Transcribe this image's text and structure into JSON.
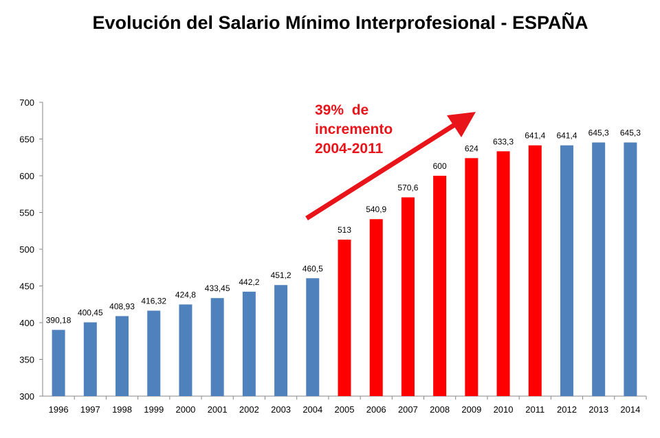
{
  "chart_data": {
    "type": "bar",
    "title": "Evolución del Salario Mínimo Interprofesional - ESPAÑA",
    "xlabel": "",
    "ylabel": "",
    "categories": [
      "1996",
      "1997",
      "1998",
      "1999",
      "2000",
      "2001",
      "2002",
      "2003",
      "2004",
      "2005",
      "2006",
      "2007",
      "2008",
      "2009",
      "2010",
      "2011",
      "2012",
      "2013",
      "2014"
    ],
    "values": [
      390.18,
      400.45,
      408.93,
      416.32,
      424.8,
      433.45,
      442.2,
      451.2,
      460.5,
      513,
      540.9,
      570.6,
      600,
      624,
      633.3,
      641.4,
      641.4,
      645.3,
      645.3
    ],
    "data_labels": [
      "390,18",
      "400,45",
      "408,93",
      "416,32",
      "424,8",
      "433,45",
      "442,2",
      "451,2",
      "460,5",
      "513",
      "540,9",
      "570,6",
      "600",
      "624",
      "633,3",
      "641,4",
      "641,4",
      "645,3",
      "645,3"
    ],
    "highlighted_categories": [
      "2005",
      "2006",
      "2007",
      "2008",
      "2009",
      "2010",
      "2011"
    ],
    "ylim": [
      300,
      700
    ],
    "yticks": [
      300,
      350,
      400,
      450,
      500,
      550,
      600,
      650,
      700
    ],
    "grid": false,
    "legend": "none",
    "colors": {
      "default_bar": "#4f81bd",
      "highlight_bar": "#ff0000",
      "annotation": "#e8141a"
    },
    "annotation": {
      "lines": [
        "39%  de",
        "incremento",
        "2004-2011"
      ],
      "arrow": "up-right"
    }
  }
}
